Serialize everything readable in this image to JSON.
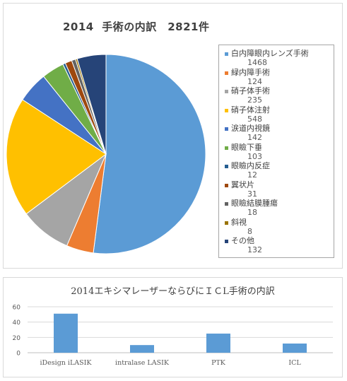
{
  "chart_data": [
    {
      "type": "pie",
      "title": "2014  手術の内訳　2821件",
      "categories": [
        "白内障眼内レンズ手術",
        "緑内障手術",
        "硝子体手術",
        "硝子体注射",
        "涙道内視鏡",
        "眼瞼下垂",
        "眼瞼内反症",
        "翼状片",
        "眼瞼結膜腫瘍",
        "斜視",
        "その他"
      ],
      "values": [
        1468,
        124,
        235,
        548,
        142,
        103,
        12,
        31,
        18,
        8,
        132
      ],
      "colors": [
        "#5B9BD5",
        "#ED7D31",
        "#A5A5A5",
        "#FFC000",
        "#4472C4",
        "#70AD47",
        "#255E91",
        "#9E480E",
        "#636363",
        "#997300",
        "#264478"
      ],
      "legend": "right"
    },
    {
      "type": "bar",
      "title": "2014エキシマレーザーならびにＩＣL手術の内訳",
      "categories": [
        "iDesign iLASIK",
        "intralase LASIK",
        "PTK",
        "ICL"
      ],
      "values": [
        51,
        10,
        25,
        12
      ],
      "ylim": [
        0,
        60
      ],
      "yticks": [
        "0",
        "20",
        "40",
        "60"
      ],
      "color": "#5B9BD5",
      "grid": true
    }
  ]
}
